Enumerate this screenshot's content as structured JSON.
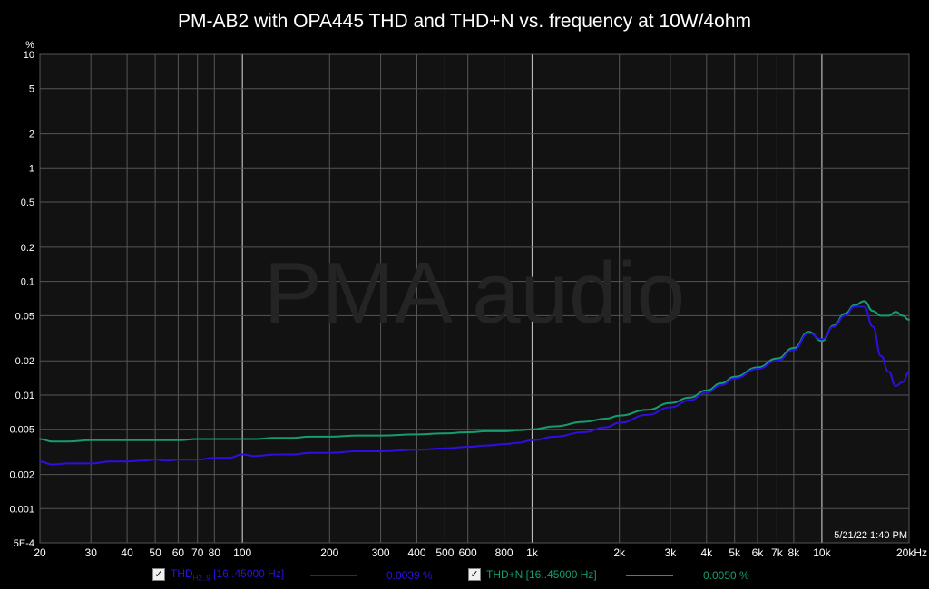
{
  "chart_data": {
    "type": "line",
    "title": "PM-AB2 with OPA445 THD and THD+N vs. frequency at 10W/4ohm",
    "ylabel": "%",
    "xscale": "log",
    "yscale": "log",
    "xlim": [
      20,
      20000
    ],
    "ylim": [
      0.0005,
      10
    ],
    "grid": true,
    "legend_placement": "bottom",
    "background_color": "#000000",
    "grid_color": "#555555",
    "major_grid_color": "#bbbbbb",
    "watermark": "PMA audio",
    "timestamp": "5/21/22 1:40 PM",
    "x_tick_values": [
      20,
      30,
      40,
      50,
      60,
      70,
      80,
      100,
      200,
      300,
      400,
      500,
      600,
      800,
      1000,
      2000,
      3000,
      4000,
      5000,
      6000,
      7000,
      8000,
      10000,
      20000
    ],
    "x_tick_labels": [
      "20",
      "30",
      "40",
      "50",
      "60",
      "70",
      "80",
      "100",
      "200",
      "300",
      "400",
      "500",
      "600",
      "800",
      "1k",
      "2k",
      "3k",
      "4k",
      "5k",
      "6k",
      "7k",
      "8k",
      "10k",
      "20kHz"
    ],
    "x_major_gridlines": [
      100,
      1000,
      10000
    ],
    "y_tick_values": [
      10,
      5,
      2,
      1,
      0.5,
      0.2,
      0.1,
      0.05,
      0.02,
      0.01,
      0.005,
      0.002,
      0.001,
      0.0005
    ],
    "y_tick_labels": [
      "10",
      "5",
      "2",
      "1",
      "0.5",
      "0.2",
      "0.1",
      "0.05",
      "0.02",
      "0.01",
      "0.005",
      "0.002",
      "0.001",
      "5E-4"
    ],
    "series": [
      {
        "name": "THD",
        "name_subscript": "H2..9",
        "name_suffix": " [16..45000 Hz]",
        "value_label": "0.0039 %",
        "color": "#2f0fe0",
        "x": [
          20,
          22,
          25,
          30,
          35,
          40,
          45,
          50,
          55,
          60,
          70,
          80,
          90,
          100,
          110,
          130,
          150,
          170,
          200,
          250,
          300,
          400,
          500,
          600,
          700,
          800,
          900,
          1000,
          1200,
          1500,
          1800,
          2000,
          2500,
          3000,
          3500,
          4000,
          4500,
          5000,
          6000,
          7000,
          8000,
          9000,
          10000,
          11000,
          12000,
          13000,
          14000,
          15000,
          16000,
          17000,
          18000,
          19000,
          20000
        ],
        "y": [
          0.0026,
          0.00245,
          0.0025,
          0.0025,
          0.0026,
          0.0026,
          0.00265,
          0.0027,
          0.00265,
          0.0027,
          0.0027,
          0.0028,
          0.0028,
          0.003,
          0.0029,
          0.003,
          0.003,
          0.0031,
          0.0031,
          0.0032,
          0.0032,
          0.0033,
          0.0034,
          0.0035,
          0.0036,
          0.0037,
          0.0038,
          0.004,
          0.0043,
          0.0047,
          0.0052,
          0.0057,
          0.0067,
          0.0078,
          0.009,
          0.0105,
          0.0122,
          0.014,
          0.017,
          0.02,
          0.025,
          0.035,
          0.031,
          0.04,
          0.05,
          0.06,
          0.06,
          0.04,
          0.022,
          0.016,
          0.012,
          0.013,
          0.016
        ]
      },
      {
        "name": "THD+N",
        "name_suffix": " [16..45000 Hz]",
        "value_label": "0.0050 %",
        "color": "#169c72",
        "x": [
          20,
          22,
          25,
          30,
          35,
          40,
          45,
          50,
          55,
          60,
          70,
          80,
          90,
          100,
          110,
          130,
          150,
          170,
          200,
          250,
          300,
          400,
          500,
          600,
          700,
          800,
          900,
          1000,
          1200,
          1500,
          1800,
          2000,
          2500,
          3000,
          3500,
          4000,
          4500,
          5000,
          6000,
          7000,
          8000,
          9000,
          10000,
          11000,
          12000,
          13000,
          14000,
          15000,
          16000,
          17000,
          18000,
          19000,
          20000
        ],
        "y": [
          0.0041,
          0.0039,
          0.0039,
          0.004,
          0.004,
          0.004,
          0.004,
          0.004,
          0.004,
          0.004,
          0.0041,
          0.0041,
          0.0041,
          0.0041,
          0.0041,
          0.0042,
          0.0042,
          0.0043,
          0.0043,
          0.0044,
          0.0044,
          0.0045,
          0.0046,
          0.0047,
          0.0048,
          0.0048,
          0.0049,
          0.005,
          0.0053,
          0.0058,
          0.0062,
          0.0066,
          0.0074,
          0.0085,
          0.0095,
          0.011,
          0.0127,
          0.0145,
          0.0175,
          0.021,
          0.026,
          0.036,
          0.03,
          0.041,
          0.052,
          0.062,
          0.067,
          0.055,
          0.05,
          0.05,
          0.054,
          0.05,
          0.046
        ]
      }
    ]
  }
}
